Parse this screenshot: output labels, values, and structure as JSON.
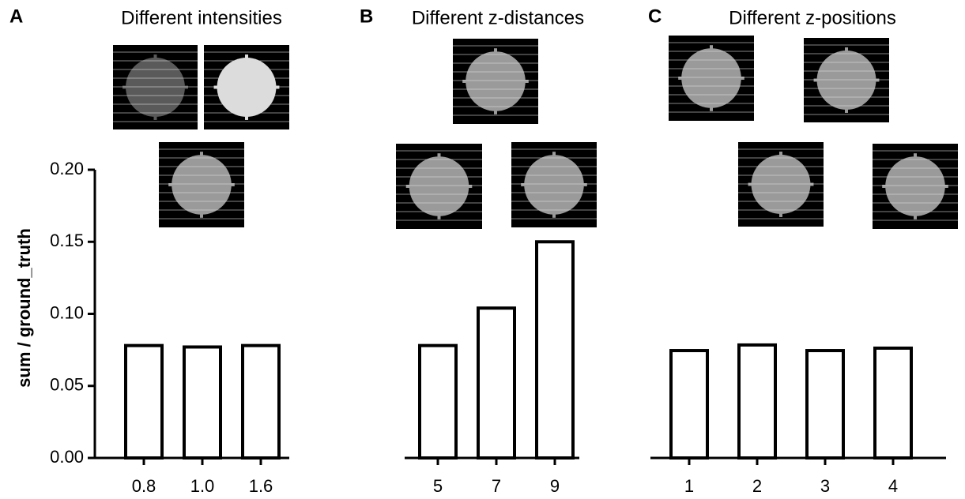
{
  "chart_data": [
    {
      "type": "bar",
      "label": "A",
      "title": "Different intensities",
      "y_label": "sum / ground_truth",
      "categories": [
        "0.8",
        "1.0",
        "1.6"
      ],
      "values": [
        0.078,
        0.077,
        0.078
      ],
      "ylim": [
        0,
        0.2
      ],
      "yticks": [
        {
          "value": 0,
          "label": "0.00"
        },
        {
          "value": 0.05,
          "label": "0.05"
        },
        {
          "value": 0.1,
          "label": "0.10"
        },
        {
          "value": 0.15,
          "label": "0.15"
        },
        {
          "value": 0.2,
          "label": "0.20"
        }
      ]
    },
    {
      "type": "bar",
      "label": "B",
      "title": "Different z-distances",
      "categories": [
        "5",
        "7",
        "9"
      ],
      "values": [
        0.078,
        0.104,
        0.15
      ],
      "ylim": [
        0,
        0.2
      ]
    },
    {
      "type": "bar",
      "label": "C",
      "title": "Different z-positions",
      "categories": [
        "1",
        "2",
        "3",
        "4"
      ],
      "values": [
        0.0745,
        0.0784,
        0.0745,
        0.0762
      ],
      "ylim": [
        0,
        0.2
      ]
    }
  ]
}
